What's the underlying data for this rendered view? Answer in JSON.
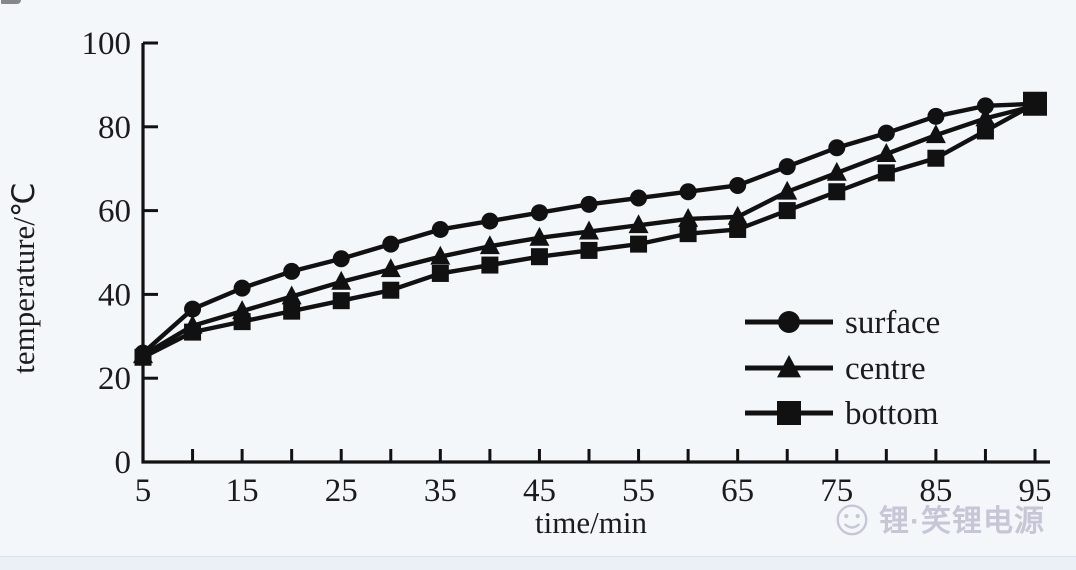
{
  "page": {
    "background": "#f4f7fa",
    "bottom_strip_color": "#ebf0f6",
    "ink_color": "#1b1b1b"
  },
  "watermark": {
    "logo": "smiley-face",
    "text": "锂·笑锂电源",
    "color": "#8a84a6"
  },
  "chart_data": {
    "type": "line",
    "title": "",
    "xlabel": "time/min",
    "ylabel": "temperature/℃",
    "xlim": [
      5,
      95
    ],
    "ylim": [
      0,
      100
    ],
    "yticks": [
      0,
      20,
      40,
      60,
      80,
      100
    ],
    "xticks_minor_every": 5,
    "xticks_labeled": [
      5,
      15,
      25,
      35,
      45,
      55,
      65,
      75,
      85,
      95
    ],
    "grid": false,
    "line_color": "#111111",
    "legend_position": "right-middle",
    "x": [
      5,
      10,
      15,
      20,
      25,
      30,
      35,
      40,
      45,
      50,
      55,
      60,
      65,
      70,
      75,
      80,
      85,
      90,
      95
    ],
    "series": [
      {
        "name": "surface",
        "marker": "circle",
        "values": [
          26,
          36.5,
          41.5,
          45.5,
          48.5,
          52,
          55.5,
          57.5,
          59.5,
          61.5,
          63,
          64.5,
          66,
          70.5,
          75,
          78.5,
          82.5,
          85,
          85.5
        ]
      },
      {
        "name": "centre",
        "marker": "triangle",
        "values": [
          25.5,
          32.5,
          36,
          39.5,
          43,
          46,
          49,
          51.5,
          53.5,
          55,
          56.5,
          58,
          58.5,
          64.5,
          69,
          73.5,
          78,
          82,
          85
        ]
      },
      {
        "name": "bottom",
        "marker": "square",
        "values": [
          25,
          31,
          33.5,
          36,
          38.5,
          41,
          45,
          47,
          49,
          50.5,
          52,
          54.5,
          55.5,
          60,
          64.5,
          69,
          72.5,
          79,
          85.5
        ]
      }
    ]
  }
}
